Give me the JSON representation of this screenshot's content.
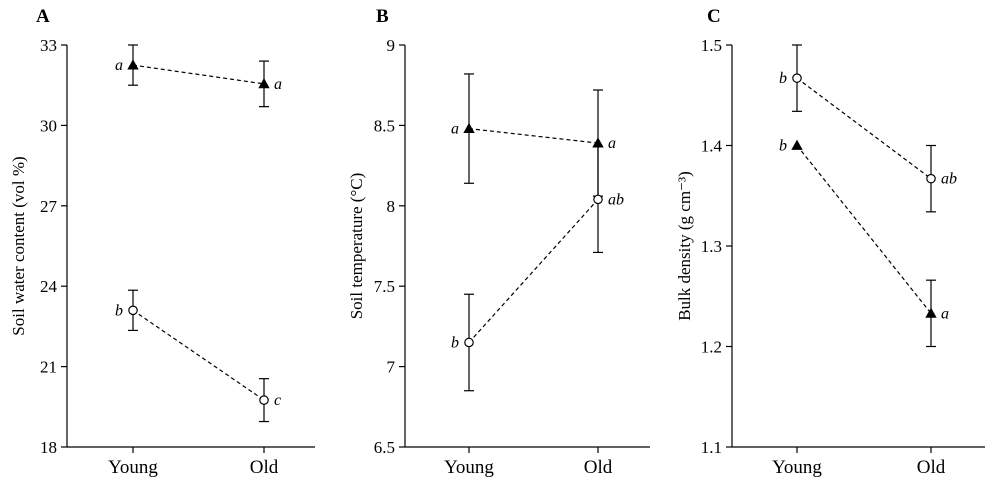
{
  "chart_data": [
    {
      "type": "line",
      "panel": "A",
      "categories": [
        "Young",
        "Old"
      ],
      "ylabel": "Soil water content (vol %)",
      "ylim": [
        18,
        33
      ],
      "yticks": [
        "18",
        "21",
        "24",
        "27",
        "30",
        "33"
      ],
      "series": [
        {
          "marker": "filled-triangle",
          "values": [
            32.25,
            31.55
          ],
          "err": [
            0.75,
            0.85
          ],
          "letters": [
            "a",
            "a"
          ]
        },
        {
          "marker": "open-circle",
          "values": [
            23.1,
            19.75
          ],
          "err": [
            0.75,
            0.8
          ],
          "letters": [
            "b",
            "c"
          ]
        }
      ]
    },
    {
      "type": "line",
      "panel": "B",
      "categories": [
        "Young",
        "Old"
      ],
      "ylabel": "Soil temperature (°C)",
      "ylim": [
        6.5,
        9
      ],
      "yticks": [
        "6.5",
        "7",
        "7.5",
        "8",
        "8.5",
        "9"
      ],
      "series": [
        {
          "marker": "filled-triangle",
          "values": [
            8.48,
            8.39
          ],
          "err": [
            0.34,
            0.33
          ],
          "letters": [
            "a",
            "a"
          ]
        },
        {
          "marker": "open-circle",
          "values": [
            7.15,
            8.04
          ],
          "err": [
            0.3,
            0.33
          ],
          "letters": [
            "b",
            "ab"
          ]
        }
      ]
    },
    {
      "type": "line",
      "panel": "C",
      "categories": [
        "Young",
        "Old"
      ],
      "ylabel": "Bulk density (g cm⁻³)",
      "ylim": [
        1.1,
        1.5
      ],
      "yticks": [
        "1.1",
        "1.2",
        "1.3",
        "1.4",
        "1.5"
      ],
      "series": [
        {
          "marker": "open-circle",
          "values": [
            1.467,
            1.367
          ],
          "err": [
            0.033,
            0.033
          ],
          "letters": [
            "b",
            "ab"
          ]
        },
        {
          "marker": "filled-triangle",
          "values": [
            1.4,
            1.233
          ],
          "err": [
            0.0,
            0.033
          ],
          "letters": [
            "b",
            "a"
          ]
        }
      ]
    }
  ]
}
